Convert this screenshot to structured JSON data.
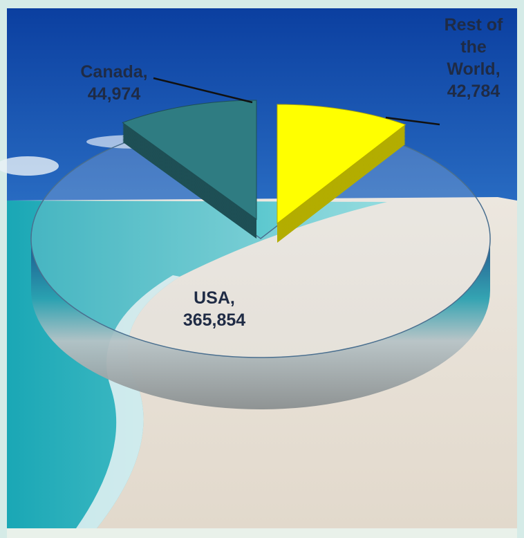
{
  "chart_data": {
    "type": "pie",
    "categories": [
      "USA,",
      "Canada,",
      "Rest of the World,"
    ],
    "values": [
      365854,
      44974,
      42784
    ],
    "value_labels": [
      "365,854",
      "44,974",
      "42,784"
    ],
    "colors": [
      "#dfe6ea",
      "#2f7c82",
      "#ffff00"
    ]
  }
}
